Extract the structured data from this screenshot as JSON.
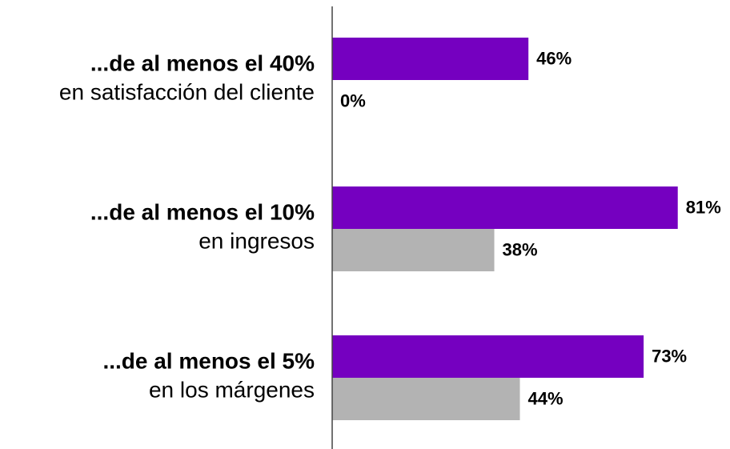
{
  "chart_data": {
    "type": "bar",
    "orientation": "horizontal",
    "categories": [
      "...de al menos el 40%",
      "...de al menos el 10%",
      "...de al menos el 5%"
    ],
    "category_subtitles": [
      "en satisfacción del cliente",
      "en ingresos",
      "en los márgenes"
    ],
    "series": [
      {
        "color": "#7500c0",
        "values": [
          46,
          81,
          73
        ],
        "value_labels": [
          "46%",
          "81%",
          "73%"
        ]
      },
      {
        "color": "#b3b3b3",
        "values": [
          0,
          38,
          44
        ],
        "value_labels": [
          "0%",
          "38%",
          "44%"
        ]
      }
    ],
    "xlim": [
      0,
      100
    ]
  }
}
